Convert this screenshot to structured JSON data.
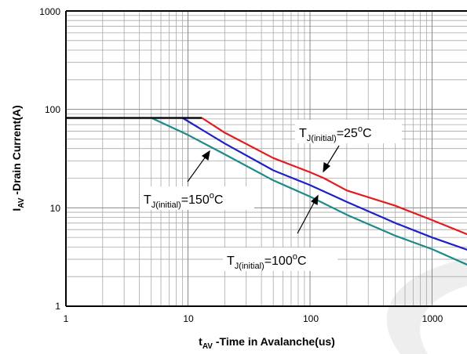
{
  "chart_data": {
    "type": "line",
    "xscale": "log",
    "yscale": "log",
    "xlim": [
      1,
      2000
    ],
    "ylim": [
      1,
      1000
    ],
    "grid": true,
    "xticks": [
      "1",
      "10",
      "100",
      "1000"
    ],
    "yticks": [
      "1",
      "10",
      "100",
      "1000"
    ],
    "xlabel": {
      "main": "t",
      "sub": "AV",
      "rest": " -Time in Avalanche(us)"
    },
    "ylabel": {
      "main": "I",
      "sub": "AV",
      "rest": " -Drain Current(A)"
    },
    "series": [
      {
        "name": "TJ(initial)=25oC",
        "color": "#e41a1c",
        "x": [
          1,
          13,
          20,
          50,
          100,
          130,
          200,
          500,
          1000,
          2000
        ],
        "y": [
          82,
          82,
          58,
          32,
          23,
          20,
          15,
          10.5,
          7.5,
          5.3
        ]
      },
      {
        "name": "TJ(initial)=100oC",
        "color": "#1f1fcc",
        "x": [
          1,
          9,
          20,
          50,
          100,
          200,
          500,
          1000,
          2000
        ],
        "y": [
          82,
          82,
          45,
          24,
          17,
          11.5,
          7,
          5,
          3.7
        ]
      },
      {
        "name": "TJ(initial)=150oC",
        "color": "#1a8a8a",
        "x": [
          1,
          5,
          10,
          20,
          50,
          100,
          200,
          500,
          1000,
          2000
        ],
        "y": [
          82,
          82,
          55,
          35,
          19,
          13,
          8.5,
          5.2,
          3.8,
          2.6
        ]
      }
    ],
    "annotations": [
      {
        "main": "T",
        "sub": "J(initial)",
        "mid": "=25",
        "sup": "o",
        "end": "C"
      },
      {
        "main": "T",
        "sub": "J(initial)",
        "mid": "=150",
        "sup": "o",
        "end": "C"
      },
      {
        "main": "T",
        "sub": "J(initial)",
        "mid": "=100",
        "sup": "o",
        "end": "C"
      }
    ]
  }
}
